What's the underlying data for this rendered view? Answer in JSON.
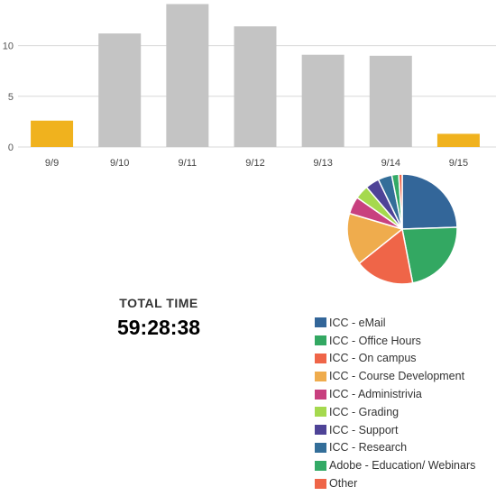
{
  "chart_data": [
    {
      "type": "bar",
      "categories": [
        "9/9",
        "9/10",
        "9/11",
        "9/12",
        "9/13",
        "9/14",
        "9/15"
      ],
      "values": [
        2.6,
        11.2,
        14.1,
        11.9,
        9.1,
        9.0,
        1.3
      ],
      "highlighted": [
        true,
        false,
        false,
        false,
        false,
        false,
        true
      ],
      "yticks": [
        0,
        5,
        10
      ],
      "ylim": [
        0,
        14.5
      ],
      "grid": true,
      "colors": {
        "bar": "#c4c4c4",
        "highlight": "#f0b21e",
        "grid": "#d8d8d8"
      }
    },
    {
      "type": "pie",
      "labels": [
        "ICC - eMail",
        "ICC - Office Hours",
        "ICC - On campus",
        "ICC - Course Development",
        "ICC - Administrivia",
        "ICC - Grading",
        "ICC - Support",
        "ICC - Research",
        "Adobe - Education/ Webinars",
        "Other"
      ],
      "values": [
        24,
        22,
        17,
        15,
        5,
        4,
        4,
        4,
        2,
        1
      ],
      "colors": [
        "#336699",
        "#33a862",
        "#ef6548",
        "#efac4d",
        "#c8407f",
        "#a5d94e",
        "#4e4397",
        "#336e99",
        "#33aa66",
        "#ef6548"
      ]
    }
  ],
  "total": {
    "label": "TOTAL TIME",
    "value": "59:28:38"
  }
}
